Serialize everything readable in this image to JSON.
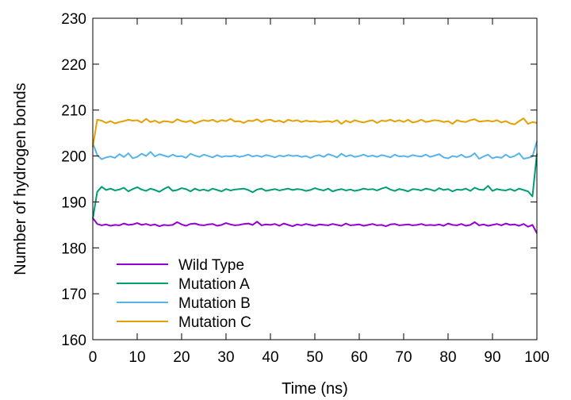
{
  "chart_data": {
    "type": "line",
    "title": "",
    "xlabel": "Time (ns)",
    "ylabel": "Number of hydrogen bonds",
    "xlim": [
      0,
      100
    ],
    "ylim": [
      160,
      230
    ],
    "xticks": [
      0,
      10,
      20,
      30,
      40,
      50,
      60,
      70,
      80,
      90,
      100
    ],
    "yticks": [
      160,
      170,
      180,
      190,
      200,
      210,
      220,
      230
    ],
    "grid": false,
    "legend_position": "bottom-left",
    "x": [
      0,
      1,
      2,
      3,
      4,
      5,
      6,
      7,
      8,
      9,
      10,
      11,
      12,
      13,
      14,
      15,
      16,
      17,
      18,
      19,
      20,
      21,
      22,
      23,
      24,
      25,
      26,
      27,
      28,
      29,
      30,
      31,
      32,
      33,
      34,
      35,
      36,
      37,
      38,
      39,
      40,
      41,
      42,
      43,
      44,
      45,
      46,
      47,
      48,
      49,
      50,
      51,
      52,
      53,
      54,
      55,
      56,
      57,
      58,
      59,
      60,
      61,
      62,
      63,
      64,
      65,
      66,
      67,
      68,
      69,
      70,
      71,
      72,
      73,
      74,
      75,
      76,
      77,
      78,
      79,
      80,
      81,
      82,
      83,
      84,
      85,
      86,
      87,
      88,
      89,
      90,
      91,
      92,
      93,
      94,
      95,
      96,
      97,
      98,
      99,
      100
    ],
    "series": [
      {
        "name": "Wild Type",
        "color": "#9400d3",
        "values": [
          186.5,
          185.2,
          184.9,
          185.1,
          184.8,
          185.0,
          184.9,
          185.3,
          185.0,
          185.1,
          185.4,
          185.0,
          185.2,
          184.9,
          185.1,
          184.7,
          185.0,
          184.9,
          185.0,
          185.6,
          185.1,
          184.8,
          185.2,
          185.3,
          185.0,
          184.9,
          185.1,
          185.2,
          184.8,
          185.0,
          185.4,
          185.1,
          184.9,
          185.0,
          185.2,
          185.3,
          185.0,
          185.7,
          184.9,
          185.1,
          185.0,
          185.2,
          184.8,
          185.3,
          185.0,
          184.7,
          185.1,
          184.9,
          185.2,
          185.0,
          184.8,
          185.1,
          185.0,
          184.9,
          185.2,
          185.0,
          184.8,
          185.3,
          184.9,
          185.0,
          185.1,
          184.8,
          185.0,
          185.2,
          184.9,
          185.0,
          184.7,
          185.1,
          185.2,
          184.9,
          185.0,
          185.1,
          184.9,
          185.0,
          185.2,
          184.9,
          185.0,
          184.9,
          185.1,
          184.8,
          185.3,
          185.0,
          184.9,
          185.2,
          184.8,
          185.0,
          185.6,
          184.9,
          185.1,
          184.8,
          185.0,
          185.2,
          184.9,
          185.3,
          185.0,
          185.1,
          184.8,
          185.2,
          184.6,
          185.0,
          183.2
        ]
      },
      {
        "name": "Mutation A",
        "color": "#009e73",
        "values": [
          186.3,
          192.2,
          193.3,
          192.6,
          192.9,
          192.5,
          192.7,
          193.1,
          192.3,
          192.8,
          193.2,
          192.7,
          192.4,
          192.9,
          192.6,
          192.2,
          192.8,
          193.3,
          192.4,
          192.6,
          193.0,
          192.8,
          192.3,
          192.9,
          192.5,
          192.7,
          192.4,
          192.9,
          192.6,
          192.3,
          192.8,
          192.5,
          192.7,
          192.8,
          192.9,
          192.6,
          192.1,
          192.7,
          192.9,
          192.4,
          192.6,
          192.8,
          192.5,
          192.7,
          192.9,
          192.6,
          192.8,
          192.7,
          192.4,
          192.6,
          193.0,
          192.7,
          192.5,
          192.9,
          192.3,
          192.6,
          192.8,
          192.5,
          192.7,
          192.4,
          192.6,
          192.9,
          192.7,
          192.8,
          192.5,
          192.9,
          193.2,
          192.7,
          192.4,
          192.8,
          192.6,
          192.3,
          192.8,
          192.7,
          192.5,
          192.9,
          192.7,
          192.4,
          193.0,
          192.6,
          192.8,
          192.3,
          192.7,
          192.6,
          192.9,
          192.4,
          193.1,
          192.7,
          192.6,
          193.5,
          192.4,
          192.8,
          192.6,
          192.5,
          192.8,
          192.4,
          192.9,
          192.6,
          192.3,
          191.2,
          200.5
        ]
      },
      {
        "name": "Mutation B",
        "color": "#56b4e9",
        "values": [
          202.8,
          200.2,
          199.3,
          199.7,
          199.9,
          199.6,
          200.4,
          199.8,
          200.6,
          199.5,
          199.8,
          200.5,
          200.0,
          200.9,
          199.9,
          200.4,
          200.1,
          199.8,
          200.3,
          199.9,
          200.0,
          199.6,
          200.5,
          200.1,
          199.8,
          200.3,
          200.0,
          199.7,
          200.2,
          199.8,
          200.0,
          199.9,
          200.1,
          199.8,
          200.0,
          200.3,
          199.9,
          200.1,
          199.8,
          200.2,
          200.0,
          199.7,
          200.1,
          199.9,
          200.2,
          200.0,
          200.1,
          199.8,
          200.0,
          199.6,
          200.0,
          200.2,
          199.8,
          200.4,
          200.1,
          199.7,
          200.5,
          199.9,
          200.2,
          199.8,
          200.0,
          200.3,
          199.9,
          200.1,
          199.8,
          200.2,
          200.0,
          199.7,
          200.3,
          199.9,
          200.0,
          199.8,
          200.2,
          200.0,
          199.9,
          200.3,
          199.8,
          200.1,
          200.4,
          199.7,
          199.5,
          200.0,
          199.8,
          200.3,
          199.7,
          199.9,
          200.6,
          199.4,
          199.9,
          200.3,
          199.5,
          199.8,
          199.6,
          200.3,
          199.7,
          200.0,
          200.6,
          199.4,
          199.6,
          199.9,
          203.2
        ]
      },
      {
        "name": "Mutation C",
        "color": "#e69f00",
        "values": [
          202.0,
          207.9,
          207.7,
          207.2,
          207.6,
          207.1,
          207.4,
          207.6,
          207.9,
          207.7,
          207.8,
          207.3,
          208.1,
          207.4,
          207.7,
          207.2,
          207.6,
          207.5,
          207.3,
          208.0,
          207.6,
          207.4,
          207.7,
          207.1,
          207.5,
          207.8,
          207.6,
          207.9,
          207.4,
          207.8,
          207.6,
          208.1,
          207.5,
          207.6,
          207.2,
          207.7,
          207.6,
          208.0,
          207.4,
          207.8,
          207.9,
          207.5,
          207.7,
          207.3,
          207.9,
          207.6,
          207.8,
          207.4,
          207.7,
          207.5,
          207.6,
          207.4,
          207.5,
          207.6,
          207.4,
          207.8,
          207.0,
          207.7,
          207.3,
          207.8,
          207.5,
          207.3,
          207.6,
          207.8,
          207.2,
          207.7,
          207.6,
          207.9,
          207.5,
          207.8,
          207.4,
          207.9,
          207.3,
          207.5,
          207.9,
          207.4,
          207.6,
          207.8,
          207.7,
          207.4,
          207.6,
          207.0,
          207.8,
          207.5,
          207.4,
          207.8,
          208.0,
          207.5,
          207.6,
          207.7,
          207.5,
          207.8,
          207.3,
          207.6,
          207.1,
          206.9,
          207.6,
          208.2,
          207.0,
          207.4,
          207.2
        ]
      }
    ]
  }
}
